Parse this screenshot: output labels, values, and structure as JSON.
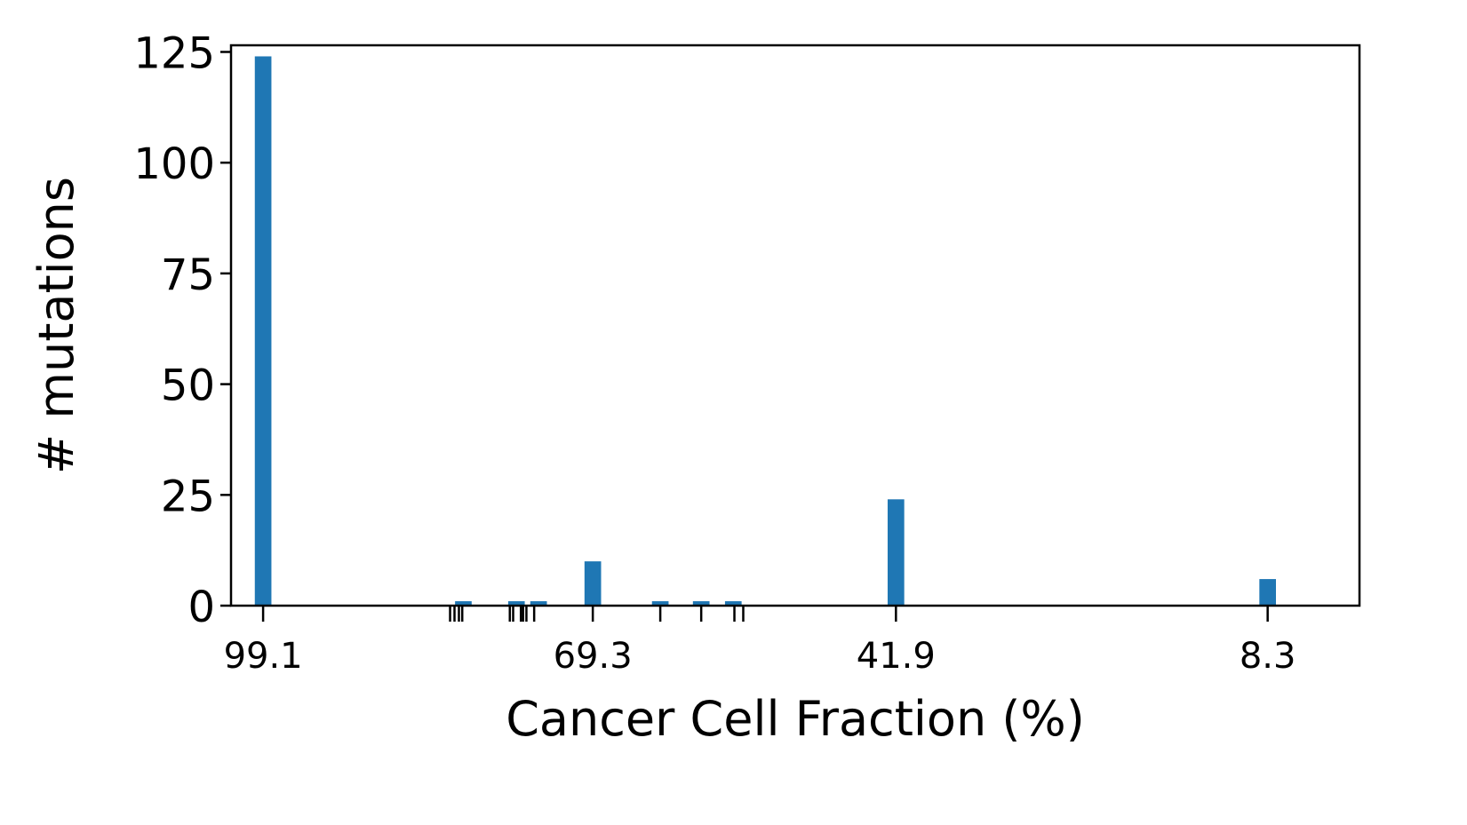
{
  "chart_data": {
    "type": "bar",
    "title": "",
    "xlabel": "Cancer Cell Fraction (%)",
    "ylabel": "# mutations",
    "x_reversed": true,
    "xlim": [
      102,
      0
    ],
    "ylim": [
      0,
      126.5
    ],
    "yticks": [
      0,
      25,
      50,
      75,
      100,
      125
    ],
    "xtick_labels": [
      {
        "value": 99.1,
        "label": "99.1"
      },
      {
        "value": 69.3,
        "label": "69.3"
      },
      {
        "value": 41.9,
        "label": "41.9"
      },
      {
        "value": 8.3,
        "label": "8.3"
      }
    ],
    "minor_ticks": [
      82.2,
      81.8,
      81.4,
      81.1,
      76.8,
      76.5,
      75.8,
      75.6,
      75.3,
      74.6,
      63.2,
      59.5,
      56.5,
      55.7
    ],
    "bar_width": 1.5,
    "x": [
      99.1,
      81.0,
      76.2,
      74.2,
      69.3,
      63.2,
      59.5,
      56.6,
      41.9,
      8.3
    ],
    "values": [
      124,
      1,
      1,
      1,
      10,
      1,
      1,
      1,
      24,
      6
    ],
    "grid": false,
    "legend": "none",
    "colors": {
      "bar": "#1f77b4",
      "axis": "#000000"
    }
  }
}
